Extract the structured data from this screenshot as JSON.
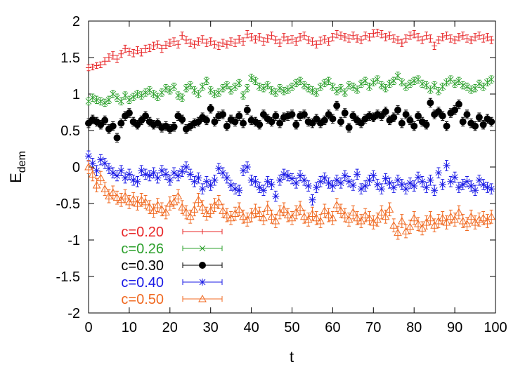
{
  "chart_data": {
    "type": "scatter",
    "title": "",
    "xlabel": "t",
    "ylabel": "E",
    "ylabel_subscript": "dem",
    "xlim": [
      0,
      100
    ],
    "ylim": [
      -2,
      2
    ],
    "xticks": [
      0,
      10,
      20,
      30,
      40,
      50,
      60,
      70,
      80,
      90,
      100
    ],
    "yticks": [
      -2,
      -1.5,
      -1,
      -0.5,
      0,
      0.5,
      1,
      1.5,
      2
    ],
    "grid": false,
    "legend_position": "bottom-left",
    "x": [
      0,
      1,
      2,
      3,
      4,
      5,
      6,
      7,
      8,
      9,
      10,
      11,
      12,
      13,
      14,
      15,
      16,
      17,
      18,
      19,
      20,
      21,
      22,
      23,
      24,
      25,
      26,
      27,
      28,
      29,
      30,
      31,
      32,
      33,
      34,
      35,
      36,
      37,
      38,
      39,
      40,
      41,
      42,
      43,
      44,
      45,
      46,
      47,
      48,
      49,
      50,
      51,
      52,
      53,
      54,
      55,
      56,
      57,
      58,
      59,
      60,
      61,
      62,
      63,
      64,
      65,
      66,
      67,
      68,
      69,
      70,
      71,
      72,
      73,
      74,
      75,
      76,
      77,
      78,
      79,
      80,
      81,
      82,
      83,
      84,
      85,
      86,
      87,
      88,
      89,
      90,
      91,
      92,
      93,
      94,
      95,
      96,
      97,
      98,
      99
    ],
    "series": [
      {
        "name": "c=0.20",
        "color": "#e8282a",
        "marker": "plus",
        "values": [
          1.36,
          1.37,
          1.39,
          1.4,
          1.45,
          1.5,
          1.53,
          1.48,
          1.55,
          1.62,
          1.58,
          1.56,
          1.6,
          1.57,
          1.62,
          1.63,
          1.66,
          1.68,
          1.62,
          1.67,
          1.7,
          1.72,
          1.68,
          1.8,
          1.74,
          1.7,
          1.68,
          1.72,
          1.75,
          1.7,
          1.72,
          1.68,
          1.66,
          1.7,
          1.68,
          1.72,
          1.7,
          1.75,
          1.72,
          1.82,
          1.78,
          1.75,
          1.78,
          1.72,
          1.76,
          1.8,
          1.74,
          1.7,
          1.78,
          1.74,
          1.75,
          1.72,
          1.78,
          1.8,
          1.74,
          1.72,
          1.68,
          1.73,
          1.75,
          1.72,
          1.78,
          1.82,
          1.8,
          1.78,
          1.76,
          1.8,
          1.76,
          1.74,
          1.8,
          1.78,
          1.83,
          1.84,
          1.82,
          1.78,
          1.8,
          1.76,
          1.74,
          1.7,
          1.76,
          1.8,
          1.82,
          1.78,
          1.74,
          1.8,
          1.76,
          1.66,
          1.74,
          1.78,
          1.8,
          1.76,
          1.74,
          1.78,
          1.8,
          1.76,
          1.74,
          1.78,
          1.8,
          1.76,
          1.78,
          1.74
        ],
        "err": [
          0.04,
          0.04,
          0.04,
          0.04,
          0.05,
          0.05,
          0.05,
          0.05,
          0.05,
          0.05,
          0.05,
          0.05,
          0.05,
          0.05,
          0.05,
          0.05,
          0.05,
          0.05,
          0.05,
          0.05,
          0.05,
          0.05,
          0.05,
          0.05,
          0.05,
          0.05,
          0.05,
          0.05,
          0.05,
          0.05,
          0.05,
          0.05,
          0.05,
          0.05,
          0.05,
          0.05,
          0.05,
          0.05,
          0.05,
          0.05,
          0.05,
          0.05,
          0.05,
          0.05,
          0.05,
          0.05,
          0.05,
          0.05,
          0.05,
          0.05,
          0.05,
          0.05,
          0.05,
          0.05,
          0.05,
          0.05,
          0.05,
          0.05,
          0.05,
          0.05,
          0.05,
          0.05,
          0.05,
          0.05,
          0.05,
          0.05,
          0.05,
          0.05,
          0.05,
          0.05,
          0.05,
          0.05,
          0.05,
          0.05,
          0.05,
          0.05,
          0.05,
          0.05,
          0.05,
          0.05,
          0.05,
          0.05,
          0.05,
          0.05,
          0.05,
          0.05,
          0.05,
          0.05,
          0.05,
          0.05,
          0.05,
          0.05,
          0.05,
          0.05,
          0.05,
          0.05,
          0.05,
          0.05,
          0.05,
          0.05
        ]
      },
      {
        "name": "c=0.26",
        "color": "#2ca02c",
        "marker": "x",
        "values": [
          0.9,
          0.95,
          0.92,
          0.9,
          0.88,
          0.92,
          1.0,
          0.95,
          0.9,
          0.98,
          0.92,
          0.96,
          1.0,
          0.98,
          1.02,
          1.05,
          1.0,
          0.96,
          1.02,
          1.08,
          1.05,
          1.1,
          0.98,
          0.95,
          1.08,
          1.12,
          1.05,
          1.0,
          1.1,
          1.18,
          1.05,
          1.0,
          1.02,
          1.08,
          1.12,
          1.05,
          1.1,
          1.15,
          0.98,
          1.08,
          1.22,
          1.18,
          1.1,
          1.08,
          1.12,
          1.05,
          1.02,
          1.08,
          1.04,
          1.06,
          1.1,
          1.15,
          1.18,
          1.12,
          1.08,
          1.05,
          1.02,
          1.1,
          1.15,
          1.18,
          1.1,
          1.04,
          1.08,
          1.02,
          1.12,
          1.1,
          1.06,
          1.14,
          1.18,
          1.1,
          1.16,
          1.2,
          1.12,
          1.08,
          1.14,
          1.18,
          1.25,
          1.16,
          1.1,
          1.14,
          1.18,
          1.2,
          1.14,
          1.12,
          1.06,
          1.12,
          1.04,
          1.1,
          1.16,
          1.2,
          1.14,
          1.18,
          1.12,
          1.1,
          1.06,
          1.08,
          1.14,
          1.1,
          1.16,
          1.2
        ],
        "err": [
          0.05,
          0.05,
          0.05,
          0.05,
          0.05,
          0.05,
          0.05,
          0.05,
          0.05,
          0.05,
          0.05,
          0.05,
          0.05,
          0.05,
          0.05,
          0.05,
          0.05,
          0.05,
          0.05,
          0.05,
          0.05,
          0.05,
          0.05,
          0.05,
          0.05,
          0.05,
          0.05,
          0.05,
          0.05,
          0.05,
          0.05,
          0.05,
          0.05,
          0.05,
          0.05,
          0.05,
          0.05,
          0.05,
          0.05,
          0.05,
          0.05,
          0.05,
          0.05,
          0.05,
          0.05,
          0.05,
          0.05,
          0.05,
          0.05,
          0.05,
          0.05,
          0.05,
          0.05,
          0.05,
          0.05,
          0.05,
          0.05,
          0.05,
          0.05,
          0.05,
          0.05,
          0.05,
          0.05,
          0.05,
          0.05,
          0.05,
          0.05,
          0.05,
          0.05,
          0.05,
          0.05,
          0.05,
          0.05,
          0.05,
          0.05,
          0.05,
          0.05,
          0.05,
          0.05,
          0.05,
          0.05,
          0.05,
          0.05,
          0.05,
          0.05,
          0.05,
          0.05,
          0.05,
          0.05,
          0.05,
          0.05,
          0.05,
          0.05,
          0.05,
          0.05,
          0.05,
          0.05,
          0.05,
          0.05,
          0.05
        ]
      },
      {
        "name": "c=0.30",
        "color": "#000000",
        "marker": "filled-circle",
        "values": [
          0.6,
          0.65,
          0.62,
          0.58,
          0.64,
          0.52,
          0.56,
          0.4,
          0.6,
          0.7,
          0.74,
          0.62,
          0.58,
          0.64,
          0.7,
          0.62,
          0.58,
          0.6,
          0.54,
          0.56,
          0.52,
          0.55,
          0.7,
          0.65,
          0.52,
          0.56,
          0.6,
          0.62,
          0.68,
          0.64,
          0.8,
          0.62,
          0.7,
          0.72,
          0.56,
          0.65,
          0.62,
          0.7,
          0.6,
          0.78,
          0.64,
          0.62,
          0.58,
          0.72,
          0.66,
          0.62,
          0.7,
          0.6,
          0.68,
          0.7,
          0.72,
          0.58,
          0.7,
          0.72,
          0.62,
          0.6,
          0.66,
          0.6,
          0.64,
          0.72,
          0.66,
          0.84,
          0.62,
          0.74,
          0.54,
          0.7,
          0.64,
          0.6,
          0.66,
          0.7,
          0.68,
          0.72,
          0.7,
          0.76,
          0.64,
          0.68,
          0.78,
          0.6,
          0.72,
          0.64,
          0.56,
          0.7,
          0.62,
          0.58,
          0.88,
          0.72,
          0.76,
          0.7,
          0.56,
          0.74,
          0.78,
          0.86,
          0.62,
          0.72,
          0.6,
          0.56,
          0.68,
          0.58,
          0.66,
          0.62
        ],
        "err": [
          0.06,
          0.06,
          0.06,
          0.06,
          0.06,
          0.06,
          0.06,
          0.06,
          0.06,
          0.06,
          0.06,
          0.06,
          0.06,
          0.06,
          0.06,
          0.06,
          0.06,
          0.06,
          0.06,
          0.06,
          0.06,
          0.06,
          0.06,
          0.06,
          0.06,
          0.06,
          0.06,
          0.06,
          0.06,
          0.06,
          0.06,
          0.06,
          0.06,
          0.06,
          0.06,
          0.06,
          0.06,
          0.06,
          0.06,
          0.06,
          0.06,
          0.06,
          0.06,
          0.06,
          0.06,
          0.06,
          0.06,
          0.06,
          0.06,
          0.06,
          0.06,
          0.06,
          0.06,
          0.06,
          0.06,
          0.06,
          0.06,
          0.06,
          0.06,
          0.06,
          0.06,
          0.06,
          0.06,
          0.06,
          0.06,
          0.06,
          0.06,
          0.06,
          0.06,
          0.06,
          0.06,
          0.06,
          0.06,
          0.06,
          0.06,
          0.06,
          0.06,
          0.06,
          0.06,
          0.06,
          0.06,
          0.06,
          0.06,
          0.06,
          0.06,
          0.06,
          0.06,
          0.06,
          0.06,
          0.06,
          0.06,
          0.06,
          0.06,
          0.06,
          0.06,
          0.06,
          0.06,
          0.06,
          0.06,
          0.06
        ]
      },
      {
        "name": "c=0.40",
        "color": "#1a1ae6",
        "marker": "asterisk",
        "values": [
          0.15,
          0.05,
          -0.05,
          0.1,
          0.05,
          -0.02,
          -0.08,
          -0.12,
          -0.05,
          -0.15,
          -0.1,
          -0.18,
          -0.2,
          -0.05,
          -0.1,
          -0.12,
          -0.08,
          -0.15,
          -0.05,
          -0.1,
          -0.18,
          -0.08,
          -0.12,
          -0.06,
          0.0,
          -0.1,
          -0.2,
          -0.15,
          -0.3,
          -0.2,
          -0.25,
          -0.18,
          -0.02,
          -0.08,
          -0.15,
          -0.25,
          -0.3,
          -0.32,
          -0.05,
          0.0,
          -0.18,
          -0.2,
          -0.28,
          -0.32,
          -0.2,
          -0.24,
          -0.4,
          -0.18,
          -0.1,
          -0.12,
          -0.16,
          -0.22,
          -0.12,
          -0.18,
          -0.26,
          -0.45,
          -0.28,
          -0.2,
          -0.15,
          -0.22,
          -0.26,
          -0.18,
          -0.22,
          -0.12,
          -0.2,
          -0.25,
          -0.1,
          -0.3,
          -0.26,
          -0.18,
          -0.12,
          -0.24,
          -0.3,
          -0.16,
          -0.22,
          -0.28,
          -0.18,
          -0.24,
          -0.3,
          -0.22,
          -0.26,
          -0.14,
          -0.2,
          -0.28,
          -0.18,
          -0.32,
          -0.08,
          -0.24,
          0.02,
          -0.2,
          -0.14,
          -0.28,
          -0.24,
          -0.2,
          -0.26,
          -0.32,
          -0.18,
          -0.24,
          -0.28,
          -0.3
        ],
        "err": [
          0.07,
          0.07,
          0.07,
          0.07,
          0.07,
          0.07,
          0.07,
          0.07,
          0.07,
          0.07,
          0.07,
          0.07,
          0.07,
          0.07,
          0.07,
          0.07,
          0.07,
          0.07,
          0.07,
          0.07,
          0.07,
          0.07,
          0.07,
          0.07,
          0.07,
          0.07,
          0.07,
          0.07,
          0.07,
          0.07,
          0.07,
          0.07,
          0.07,
          0.07,
          0.07,
          0.07,
          0.07,
          0.07,
          0.07,
          0.07,
          0.07,
          0.07,
          0.07,
          0.07,
          0.07,
          0.07,
          0.07,
          0.07,
          0.07,
          0.07,
          0.07,
          0.07,
          0.07,
          0.07,
          0.07,
          0.07,
          0.07,
          0.07,
          0.07,
          0.07,
          0.07,
          0.07,
          0.07,
          0.07,
          0.07,
          0.07,
          0.07,
          0.07,
          0.07,
          0.07,
          0.07,
          0.07,
          0.07,
          0.07,
          0.07,
          0.07,
          0.07,
          0.07,
          0.07,
          0.07,
          0.07,
          0.07,
          0.07,
          0.07,
          0.07,
          0.07,
          0.07,
          0.07,
          0.07,
          0.07,
          0.07,
          0.07,
          0.07,
          0.07,
          0.07,
          0.07,
          0.07,
          0.07,
          0.07,
          0.07
        ]
      },
      {
        "name": "c=0.50",
        "color": "#f06a22",
        "marker": "triangle",
        "values": [
          0.0,
          -0.1,
          -0.25,
          -0.15,
          -0.3,
          -0.4,
          -0.35,
          -0.42,
          -0.45,
          -0.4,
          -0.48,
          -0.44,
          -0.5,
          -0.45,
          -0.48,
          -0.55,
          -0.6,
          -0.52,
          -0.58,
          -0.62,
          -0.5,
          -0.48,
          -0.4,
          -0.55,
          -0.62,
          -0.68,
          -0.58,
          -0.45,
          -0.55,
          -0.64,
          -0.6,
          -0.52,
          -0.48,
          -0.6,
          -0.66,
          -0.7,
          -0.64,
          -0.58,
          -0.68,
          -0.72,
          -0.66,
          -0.6,
          -0.64,
          -0.7,
          -0.56,
          -0.68,
          -0.74,
          -0.62,
          -0.58,
          -0.66,
          -0.7,
          -0.62,
          -0.56,
          -0.68,
          -0.72,
          -0.64,
          -0.7,
          -0.74,
          -0.6,
          -0.66,
          -0.7,
          -0.52,
          -0.6,
          -0.66,
          -0.72,
          -0.62,
          -0.7,
          -0.74,
          -0.66,
          -0.7,
          -0.76,
          -0.72,
          -0.62,
          -0.68,
          -0.58,
          -0.8,
          -0.9,
          -0.74,
          -0.88,
          -0.82,
          -0.7,
          -0.78,
          -0.84,
          -0.76,
          -0.7,
          -0.8,
          -0.74,
          -0.7,
          -0.76,
          -0.68,
          -0.72,
          -0.62,
          -0.74,
          -0.78,
          -0.68,
          -0.76,
          -0.72,
          -0.7,
          -0.74,
          -0.68
        ],
        "err": [
          0.09,
          0.09,
          0.09,
          0.09,
          0.09,
          0.09,
          0.09,
          0.09,
          0.09,
          0.09,
          0.09,
          0.09,
          0.09,
          0.09,
          0.09,
          0.09,
          0.09,
          0.09,
          0.09,
          0.09,
          0.09,
          0.09,
          0.09,
          0.09,
          0.09,
          0.09,
          0.09,
          0.09,
          0.09,
          0.09,
          0.09,
          0.09,
          0.09,
          0.09,
          0.09,
          0.09,
          0.09,
          0.09,
          0.09,
          0.09,
          0.09,
          0.09,
          0.09,
          0.09,
          0.09,
          0.09,
          0.09,
          0.09,
          0.09,
          0.09,
          0.09,
          0.09,
          0.09,
          0.09,
          0.09,
          0.09,
          0.09,
          0.09,
          0.09,
          0.09,
          0.09,
          0.09,
          0.09,
          0.09,
          0.09,
          0.09,
          0.09,
          0.09,
          0.09,
          0.09,
          0.09,
          0.09,
          0.09,
          0.09,
          0.09,
          0.09,
          0.09,
          0.09,
          0.09,
          0.09,
          0.09,
          0.09,
          0.09,
          0.09,
          0.09,
          0.09,
          0.09,
          0.09,
          0.09,
          0.09,
          0.09,
          0.09,
          0.09,
          0.09,
          0.09,
          0.09,
          0.09,
          0.09,
          0.09,
          0.09
        ]
      }
    ]
  }
}
